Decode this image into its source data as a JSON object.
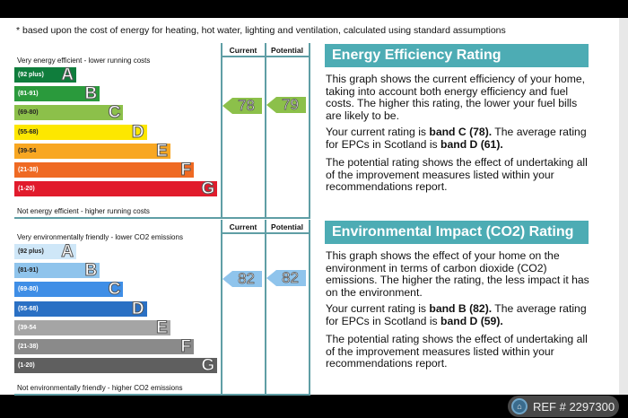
{
  "footnote": "* based upon the cost of energy for heating, hot water, lighting and ventilation, calculated using standard assumptions",
  "energy": {
    "top_label": "Very energy efficient - lower running costs",
    "bottom_label": "Not energy efficient - higher running costs",
    "col_current": "Current",
    "col_potential": "Potential",
    "current": "78",
    "potential": "79",
    "arrow_color": "#8cc04a",
    "bands": [
      {
        "range": "(92 plus)",
        "letter": "A",
        "color": "#0f7d3c"
      },
      {
        "range": "(81-91)",
        "letter": "B",
        "color": "#2a9a3c"
      },
      {
        "range": "(69-80)",
        "letter": "C",
        "color": "#8cc04a"
      },
      {
        "range": "(55-68)",
        "letter": "D",
        "color": "#fde700"
      },
      {
        "range": "(39-54",
        "letter": "E",
        "color": "#f8a722"
      },
      {
        "range": "(21-38)",
        "letter": "F",
        "color": "#ef6a23"
      },
      {
        "range": "(1-20)",
        "letter": "G",
        "color": "#e11b2c"
      }
    ]
  },
  "environment": {
    "top_label": "Very environmentally friendly - lower CO2 emissions",
    "bottom_label": "Not environmentally friendly - higher CO2 emissions",
    "col_current": "Current",
    "col_potential": "Potential",
    "current": "82",
    "potential": "82",
    "arrow_color": "#8fc4ec",
    "bands": [
      {
        "range": "(92 plus)",
        "letter": "A",
        "color": "#cfe7f8"
      },
      {
        "range": "(81-91)",
        "letter": "B",
        "color": "#8fc4ec"
      },
      {
        "range": "(69-80)",
        "letter": "C",
        "color": "#3f8ee6"
      },
      {
        "range": "(55-68)",
        "letter": "D",
        "color": "#2a70c4"
      },
      {
        "range": "(39-54",
        "letter": "E",
        "color": "#a5a5a5"
      },
      {
        "range": "(21-38)",
        "letter": "F",
        "color": "#8a8a8a"
      },
      {
        "range": "(1-20)",
        "letter": "G",
        "color": "#5f5f5f"
      }
    ]
  },
  "eer": {
    "title": "Energy Efficiency Rating",
    "p1": "This graph shows the current efficiency of your home, taking into account both energy efficiency and fuel costs. The higher this rating, the lower your fuel bills are likely to be.",
    "p2a": "Your current rating is ",
    "p2b": "band C (78).",
    "p2c": " The average rating for EPCs in Scotland is ",
    "p2d": "band D (61).",
    "p3": "The potential rating shows the effect of undertaking all of the improvement measures listed within your recommendations report."
  },
  "eir": {
    "title": "Environmental Impact (CO2) Rating",
    "p1": "This graph shows the effect of your home on the environment in terms of carbon dioxide (CO2) emissions. The higher the rating, the less impact it has on the environment.",
    "p2a": "Your current rating is ",
    "p2b": "band B (82).",
    "p2c": " The average rating for EPCs in Scotland is ",
    "p2d": "band D (59).",
    "p3": "The potential rating shows the effect of undertaking all of the improvement measures listed within your recommendations report."
  },
  "ref": "REF # 2297300"
}
